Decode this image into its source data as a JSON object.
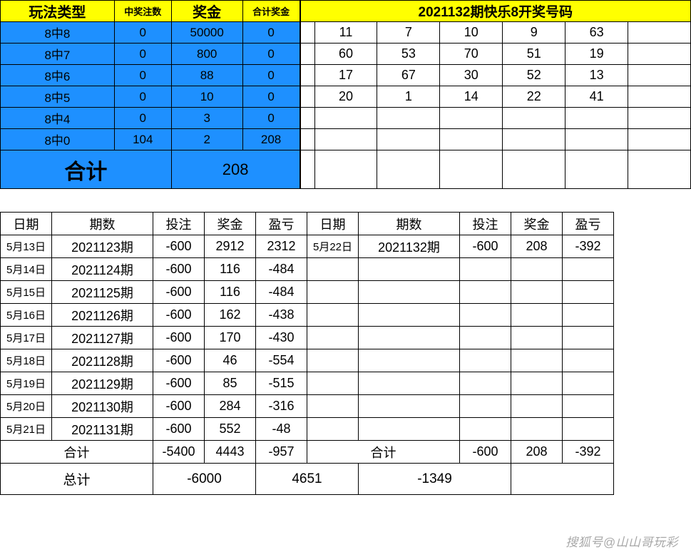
{
  "prize": {
    "headers": [
      "玩法类型",
      "中奖注数",
      "奖金",
      "合计奖金"
    ],
    "rows": [
      {
        "type": "8中8",
        "count": "0",
        "amount": "50000",
        "sum": "0"
      },
      {
        "type": "8中7",
        "count": "0",
        "amount": "800",
        "sum": "0"
      },
      {
        "type": "8中6",
        "count": "0",
        "amount": "88",
        "sum": "0"
      },
      {
        "type": "8中5",
        "count": "0",
        "amount": "10",
        "sum": "0"
      },
      {
        "type": "8中4",
        "count": "0",
        "amount": "3",
        "sum": "0"
      },
      {
        "type": "8中0",
        "count": "104",
        "amount": "2",
        "sum": "208"
      }
    ],
    "total_label": "合计",
    "total_value": "208"
  },
  "numbers": {
    "title": "2021132期快乐8开奖号码",
    "grid": [
      [
        "11",
        "7",
        "10",
        "9",
        "63",
        ""
      ],
      [
        "60",
        "53",
        "70",
        "51",
        "19",
        ""
      ],
      [
        "17",
        "67",
        "30",
        "52",
        "13",
        ""
      ],
      [
        "20",
        "1",
        "14",
        "22",
        "41",
        ""
      ],
      [
        "",
        "",
        "",
        "",
        "",
        ""
      ],
      [
        "",
        "",
        "",
        "",
        "",
        ""
      ],
      [
        "",
        "",
        "",
        "",
        "",
        ""
      ]
    ]
  },
  "ledger": {
    "headers": [
      "日期",
      "期数",
      "投注",
      "奖金",
      "盈亏",
      "日期",
      "期数",
      "投注",
      "奖金",
      "盈亏"
    ],
    "rows": [
      [
        "5月13日",
        "2021123期",
        "-600",
        "2912",
        "2312",
        "5月22日",
        "2021132期",
        "-600",
        "208",
        "-392"
      ],
      [
        "5月14日",
        "2021124期",
        "-600",
        "116",
        "-484",
        "",
        "",
        "",
        "",
        ""
      ],
      [
        "5月15日",
        "2021125期",
        "-600",
        "116",
        "-484",
        "",
        "",
        "",
        "",
        ""
      ],
      [
        "5月16日",
        "2021126期",
        "-600",
        "162",
        "-438",
        "",
        "",
        "",
        "",
        ""
      ],
      [
        "5月17日",
        "2021127期",
        "-600",
        "170",
        "-430",
        "",
        "",
        "",
        "",
        ""
      ],
      [
        "5月18日",
        "2021128期",
        "-600",
        "46",
        "-554",
        "",
        "",
        "",
        "",
        ""
      ],
      [
        "5月19日",
        "2021129期",
        "-600",
        "85",
        "-515",
        "",
        "",
        "",
        "",
        ""
      ],
      [
        "5月20日",
        "2021130期",
        "-600",
        "284",
        "-316",
        "",
        "",
        "",
        "",
        ""
      ],
      [
        "5月21日",
        "2021131期",
        "-600",
        "552",
        "-48",
        "",
        "",
        "",
        "",
        ""
      ]
    ],
    "subtotal_label": "合计",
    "subtotal_left": [
      "-5400",
      "4443",
      "-957"
    ],
    "subtotal_right": [
      "-600",
      "208",
      "-392"
    ],
    "grand_label": "总计",
    "grand": [
      "-6000",
      "4651",
      "-1349"
    ]
  },
  "watermark": "搜狐号@山山哥玩彩",
  "colors": {
    "yellow": "#ffff00",
    "blue": "#1e90ff",
    "border": "#000000",
    "bg": "#ffffff"
  },
  "col_widths": {
    "prize": [
      160,
      80,
      100,
      80
    ],
    "numbers": [
      20,
      88,
      88,
      88,
      88,
      88,
      88
    ],
    "ledger": [
      72,
      142,
      72,
      72,
      72,
      72,
      142,
      72,
      72,
      72
    ]
  }
}
